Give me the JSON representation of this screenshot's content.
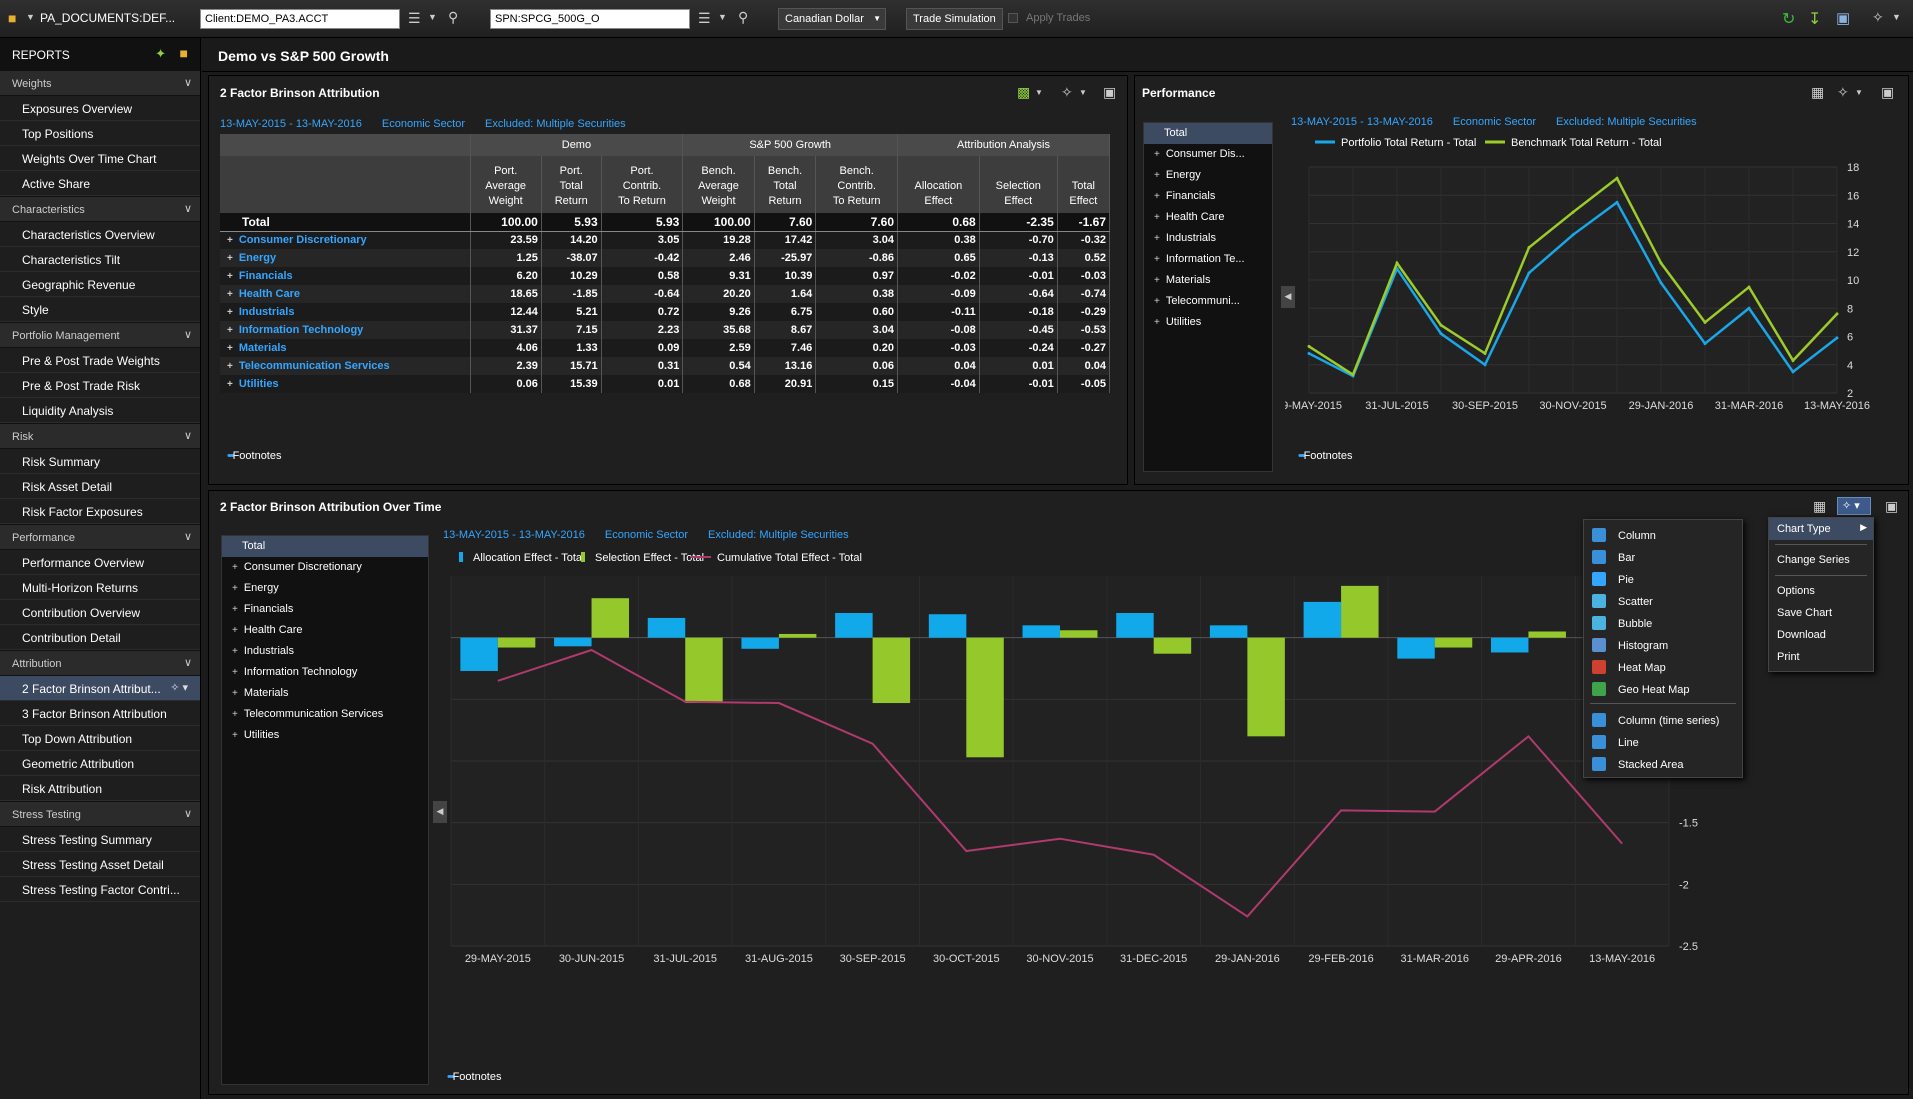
{
  "topbar": {
    "doc": "PA_DOCUMENTS:DEF...",
    "client": "Client:DEMO_PA3.ACCT",
    "benchmark": "SPN:SPCG_500G_O",
    "currency": "Canadian Dollar",
    "trade_sim": "Trade Simulation",
    "apply": "Apply Trades"
  },
  "sidebar": {
    "header": "REPORTS",
    "sections": [
      {
        "title": "Weights",
        "items": [
          "Exposures Overview",
          "Top Positions",
          "Weights Over Time Chart",
          "Active Share"
        ]
      },
      {
        "title": "Characteristics",
        "items": [
          "Characteristics Overview",
          "Characteristics Tilt",
          "Geographic Revenue",
          "Style"
        ]
      },
      {
        "title": "Portfolio Management",
        "items": [
          "Pre & Post Trade Weights",
          "Pre & Post Trade Risk",
          "Liquidity Analysis"
        ]
      },
      {
        "title": "Risk",
        "items": [
          "Risk Summary",
          "Risk Asset Detail",
          "Risk Factor Exposures"
        ]
      },
      {
        "title": "Performance",
        "items": [
          "Performance Overview",
          "Multi-Horizon Returns",
          "Contribution Overview",
          "Contribution Detail"
        ]
      },
      {
        "title": "Attribution",
        "items": [
          "2 Factor Brinson Attribut...",
          "3 Factor Brinson Attribution",
          "Top Down Attribution",
          "Geometric Attribution",
          "Risk Attribution"
        ]
      },
      {
        "title": "Stress Testing",
        "items": [
          "Stress Testing Summary",
          "Stress Testing Asset Detail",
          "Stress Testing Factor Contri..."
        ]
      }
    ]
  },
  "page_title": "Demo vs S&P 500 Growth",
  "meta": {
    "date": "13-MAY-2015 - 13-MAY-2016",
    "group": "Economic Sector",
    "excluded": "Excluded: Multiple Securities"
  },
  "footnotes": "Footnotes",
  "brinson": {
    "title": "2 Factor Brinson Attribution",
    "groups": [
      "",
      "Demo",
      "S&P 500 Growth",
      "Attribution Analysis"
    ],
    "cols": [
      [
        "Port.",
        "Average",
        "Weight"
      ],
      [
        "Port.",
        "Total",
        "Return"
      ],
      [
        "Port.",
        "Contrib.",
        "To Return"
      ],
      [
        "Bench.",
        "Average",
        "Weight"
      ],
      [
        "Bench.",
        "Total",
        "Return"
      ],
      [
        "Bench.",
        "Contrib.",
        "To Return"
      ],
      [
        "",
        "Allocation",
        "Effect"
      ],
      [
        "",
        "Selection",
        "Effect"
      ],
      [
        "",
        "Total",
        "Effect"
      ]
    ],
    "rows": [
      [
        "Total",
        "100.00",
        "5.93",
        "5.93",
        "100.00",
        "7.60",
        "7.60",
        "0.68",
        "-2.35",
        "-1.67"
      ],
      [
        "Consumer Discretionary",
        "23.59",
        "14.20",
        "3.05",
        "19.28",
        "17.42",
        "3.04",
        "0.38",
        "-0.70",
        "-0.32"
      ],
      [
        "Energy",
        "1.25",
        "-38.07",
        "-0.42",
        "2.46",
        "-25.97",
        "-0.86",
        "0.65",
        "-0.13",
        "0.52"
      ],
      [
        "Financials",
        "6.20",
        "10.29",
        "0.58",
        "9.31",
        "10.39",
        "0.97",
        "-0.02",
        "-0.01",
        "-0.03"
      ],
      [
        "Health Care",
        "18.65",
        "-1.85",
        "-0.64",
        "20.20",
        "1.64",
        "0.38",
        "-0.09",
        "-0.64",
        "-0.74"
      ],
      [
        "Industrials",
        "12.44",
        "5.21",
        "0.72",
        "9.26",
        "6.75",
        "0.60",
        "-0.11",
        "-0.18",
        "-0.29"
      ],
      [
        "Information Technology",
        "31.37",
        "7.15",
        "2.23",
        "35.68",
        "8.67",
        "3.04",
        "-0.08",
        "-0.45",
        "-0.53"
      ],
      [
        "Materials",
        "4.06",
        "1.33",
        "0.09",
        "2.59",
        "7.46",
        "0.20",
        "-0.03",
        "-0.24",
        "-0.27"
      ],
      [
        "Telecommunication Services",
        "2.39",
        "15.71",
        "0.31",
        "0.54",
        "13.16",
        "0.06",
        "0.04",
        "0.01",
        "0.04"
      ],
      [
        "Utilities",
        "0.06",
        "15.39",
        "0.01",
        "0.68",
        "20.91",
        "0.15",
        "-0.04",
        "-0.01",
        "-0.05"
      ]
    ]
  },
  "performance": {
    "title": "Performance",
    "tree": [
      "Total",
      "Consumer Dis...",
      "Energy",
      "Financials",
      "Health Care",
      "Industrials",
      "Information Te...",
      "Materials",
      "Telecommuni...",
      "Utilities"
    ]
  },
  "overtime": {
    "title": "2 Factor Brinson Attribution Over Time",
    "tree": [
      "Total",
      "Consumer Discretionary",
      "Energy",
      "Financials",
      "Health Care",
      "Industrials",
      "Information Technology",
      "Materials",
      "Telecommunication Services",
      "Utilities"
    ]
  },
  "menu": {
    "types": [
      "Column",
      "Bar",
      "Pie",
      "Scatter",
      "Bubble",
      "Histogram",
      "Heat Map",
      "Geo Heat Map",
      "Column (time series)",
      "Line",
      "Stacked Area"
    ],
    "actions": [
      "Chart Type",
      "Change Series",
      "Options",
      "Save Chart",
      "Download",
      "Print"
    ],
    "colors": [
      "#3a8fd9",
      "#3a8fd9",
      "#35a6ff",
      "#4cb3e0",
      "#4cb3e0",
      "#5a8fd0",
      "#d04030",
      "#3ea34a",
      "#3a8fd9",
      "#3a8fd9",
      "#3a8fd9"
    ]
  },
  "chart_data": [
    {
      "type": "line",
      "x": [
        "29-MAY-2015",
        "30-JUN-2015",
        "31-JUL-2015",
        "31-AUG-2015",
        "30-SEP-2015",
        "30-OCT-2015",
        "30-NOV-2015",
        "31-DEC-2015",
        "29-JAN-2016",
        "29-FEB-2016",
        "31-MAR-2016",
        "29-APR-2016",
        "13-MAY-2016"
      ],
      "xticks": [
        "29-MAY-2015",
        "31-JUL-2015",
        "30-SEP-2015",
        "30-NOV-2015",
        "29-JAN-2016",
        "31-MAR-2016",
        "13-MAY-2016"
      ],
      "ylim": [
        2,
        18
      ],
      "yticks": [
        2,
        4,
        6,
        8,
        10,
        12,
        14,
        16,
        18
      ],
      "series": [
        {
          "name": "Portfolio Total Return - Total",
          "color": "#1aa7e8",
          "values": [
            4.8,
            3.2,
            10.8,
            6.2,
            4.0,
            10.5,
            13.2,
            15.5,
            9.8,
            5.5,
            8.0,
            3.5,
            5.9
          ]
        },
        {
          "name": "Benchmark Total Return - Total",
          "color": "#9ccc2a",
          "values": [
            5.3,
            3.3,
            11.2,
            6.8,
            4.8,
            12.3,
            14.8,
            17.2,
            11.2,
            7.0,
            9.5,
            4.3,
            7.6
          ]
        }
      ]
    },
    {
      "type": "bar",
      "x": [
        "29-MAY-2015",
        "30-JUN-2015",
        "31-JUL-2015",
        "31-AUG-2015",
        "30-SEP-2015",
        "30-OCT-2015",
        "30-NOV-2015",
        "31-DEC-2015",
        "29-JAN-2016",
        "29-FEB-2016",
        "31-MAR-2016",
        "29-APR-2016",
        "13-MAY-2016"
      ],
      "ylim": [
        -2.5,
        0.5
      ],
      "yticks": [
        -0.5,
        -1,
        -1.5,
        -2,
        -2.5
      ],
      "series": [
        {
          "name": "Allocation Effect - Total",
          "color": "#12a9ea",
          "values": [
            -0.27,
            -0.07,
            0.16,
            -0.09,
            0.2,
            0.19,
            0.1,
            0.2,
            0.1,
            0.29,
            -0.17,
            -0.12,
            0.12
          ]
        },
        {
          "name": "Selection Effect - Total",
          "color": "#95c92b",
          "values": [
            -0.08,
            0.32,
            -0.53,
            0.03,
            -0.53,
            -0.97,
            0.06,
            -0.13,
            -0.8,
            0.42,
            -0.08,
            0.05,
            -0.74
          ]
        },
        {
          "name": "Cumulative Total Effect - Total",
          "color": "#b03a6e",
          "type": "line",
          "values": [
            -0.35,
            -0.1,
            -0.52,
            -0.53,
            -0.86,
            -1.73,
            -1.63,
            -1.76,
            -2.26,
            -1.4,
            -1.41,
            -0.8,
            -1.67
          ]
        }
      ]
    }
  ]
}
